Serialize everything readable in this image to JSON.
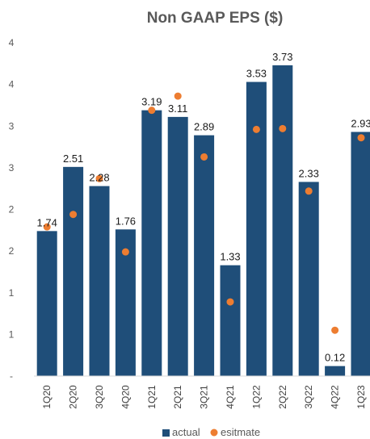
{
  "chart_data": {
    "type": "bar",
    "title": "Non GAAP EPS ($)",
    "xlabel": "",
    "ylabel": "",
    "ylim": [
      0,
      4.0
    ],
    "y_tick_labels": [
      "-",
      "1",
      "1",
      "2",
      "2",
      "3",
      "3",
      "4",
      "4"
    ],
    "categories": [
      "1Q20",
      "2Q20",
      "3Q20",
      "4Q20",
      "1Q21",
      "2Q21",
      "3Q21",
      "4Q21",
      "1Q22",
      "2Q22",
      "3Q22",
      "4Q22",
      "1Q23"
    ],
    "series": [
      {
        "name": "actual",
        "kind": "bar",
        "color": "#1f4e79",
        "values": [
          1.74,
          2.51,
          2.28,
          1.76,
          3.19,
          3.11,
          2.89,
          1.33,
          3.53,
          3.73,
          2.33,
          0.12,
          2.93
        ]
      },
      {
        "name": "esitmate",
        "kind": "scatter",
        "color": "#ed7d31",
        "values": [
          1.79,
          1.94,
          2.37,
          1.49,
          3.19,
          3.36,
          2.63,
          0.89,
          2.96,
          2.97,
          2.22,
          0.55,
          2.86
        ]
      }
    ],
    "data_labels": [
      "1.74",
      "2.51",
      "2.28",
      "1.76",
      "3.19",
      "3.11",
      "2.89",
      "1.33",
      "3.53",
      "3.73",
      "2.33",
      "0.12",
      "2.93"
    ],
    "legend": {
      "position": "bottom",
      "items": [
        "actual",
        "esitmate"
      ]
    },
    "grid": false
  }
}
